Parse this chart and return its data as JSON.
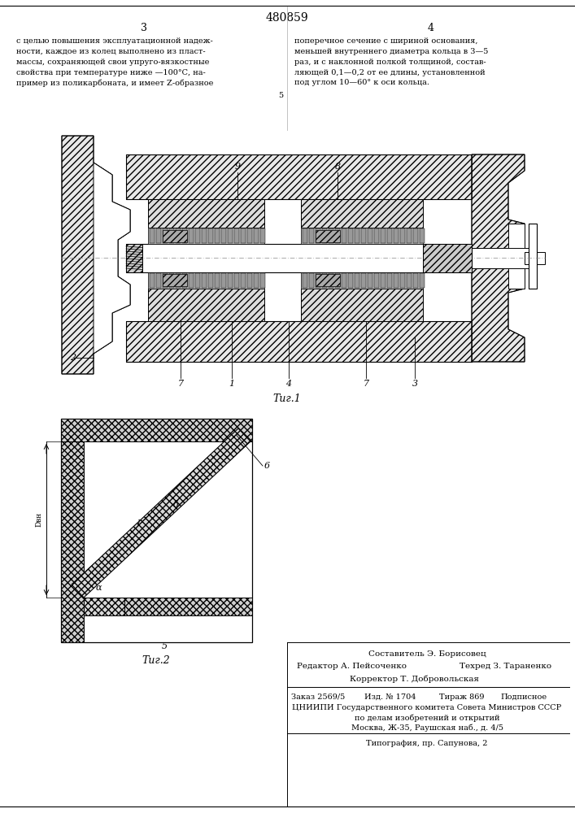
{
  "title": "480859",
  "text_left": "с целью повышения эксплуатационной надеж-\nности, каждое из колец выполнено из пласт-\nмассы, сохраняющей свои упруго-вязкостные\nсвойства при температуре ниже —100°С, на-\nпример из поликарбоната, и имеет Z-образное",
  "text_right": "поперечное сечение с шириной основания,\nменьшей внутреннего диаметра кольца в 3—5\nраз, и с наклонной полкой толщиной, состав-\nляющей 0,1—0,2 от ее длины, установленной\nпод углом 10—60° к оси кольца.",
  "fig1_label": "Τиг.1",
  "fig2_label": "Τиг.2",
  "bottom_composer": "Составитель Э. Борисовец",
  "bottom_editor": "Редактор А. Пейсоченко",
  "bottom_tech": "Техред З. Тараненко",
  "bottom_corrector": "Корректор Т. Добровольская",
  "bottom_order": "Заказ 2569/5",
  "bottom_izd": "Изд. № 1704",
  "bottom_tirazh": "Тираж 869",
  "bottom_podp": "Подписное",
  "bottom_cniipi": "ЦНИИПИ Государственного комитета Совета Министров СССР",
  "bottom_dela": "по делам изобретений и открытий",
  "bottom_address": "Москва, Ж-35, Раушская наб., д. 4/5",
  "bottom_tipografia": "Типография, пр. Сапунова, 2",
  "bg_color": "#ffffff"
}
